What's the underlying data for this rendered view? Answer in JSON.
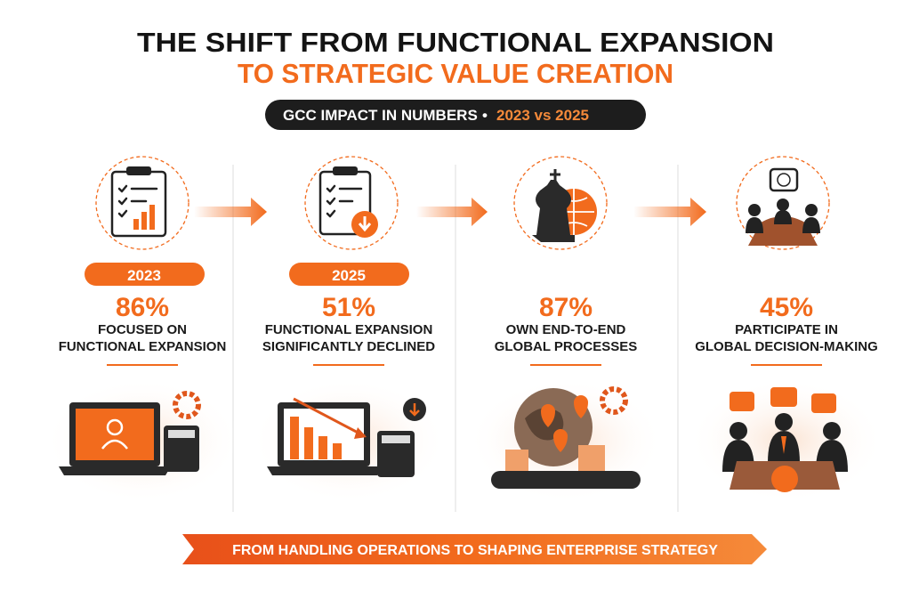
{
  "header": {
    "title_line1": "THE SHIFT FROM FUNCTIONAL EXPANSION",
    "title_line2": "TO STRATEGIC VALUE CREATION"
  },
  "subtitle": {
    "label": "GCC IMPACT IN NUMBERS",
    "separator": "•",
    "highlight": "2023 vs 2025"
  },
  "panels": [
    {
      "year": "2023",
      "stat": "86%",
      "description": [
        "FOCUSED ON",
        "FUNCTIONAL EXPANSION"
      ]
    },
    {
      "year": "2025",
      "stat": "51%",
      "description": [
        "FUNCTIONAL EXPANSION",
        "SIGNIFICANTLY DECLINED"
      ]
    },
    {
      "stat": "87%",
      "description": [
        "OWN END-TO-END",
        "GLOBAL PROCESSES"
      ]
    },
    {
      "stat": "45%",
      "description": [
        "PARTICIPATE IN",
        "GLOBAL DECISION-MAKING"
      ]
    }
  ],
  "footer": {
    "banner": "FROM HANDLING OPERATIONS TO SHAPING ENTERPRISE STRATEGY"
  }
}
